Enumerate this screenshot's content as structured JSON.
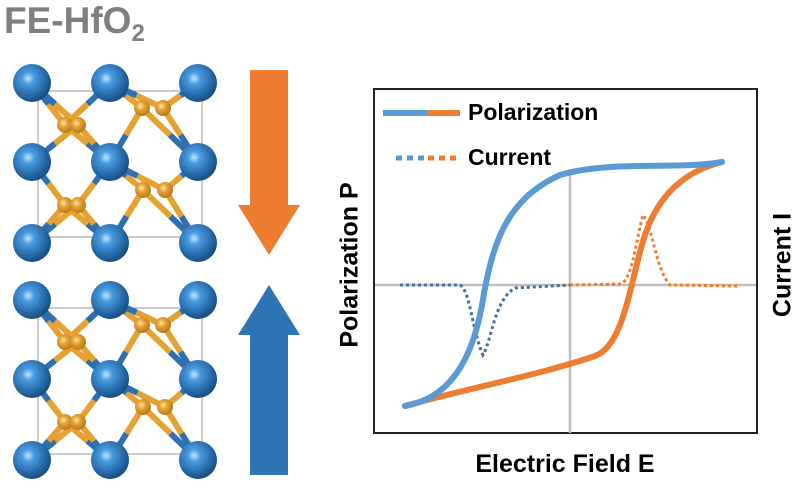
{
  "title": {
    "main": "FE-HfO",
    "subscript": "2"
  },
  "colors": {
    "orange": "#ED7D31",
    "blue": "#5B9BD5",
    "dark_blue": "#2E75B6",
    "current_blue": "#44709E",
    "hf_atom": "#2F6FAE",
    "o_atom": "#E5A233",
    "axis_gray": "#BFBFBF"
  },
  "structures": [
    {
      "state": "top",
      "polarization_arrow": "down"
    },
    {
      "state": "bottom",
      "polarization_arrow": "up"
    }
  ],
  "chart": {
    "ylabel": "Polarization P",
    "y2label": "Current I",
    "xlabel": "Electric Field E",
    "legend": [
      {
        "label": "Polarization",
        "style": "solid"
      },
      {
        "label": "Current",
        "style": "dotted"
      }
    ]
  }
}
